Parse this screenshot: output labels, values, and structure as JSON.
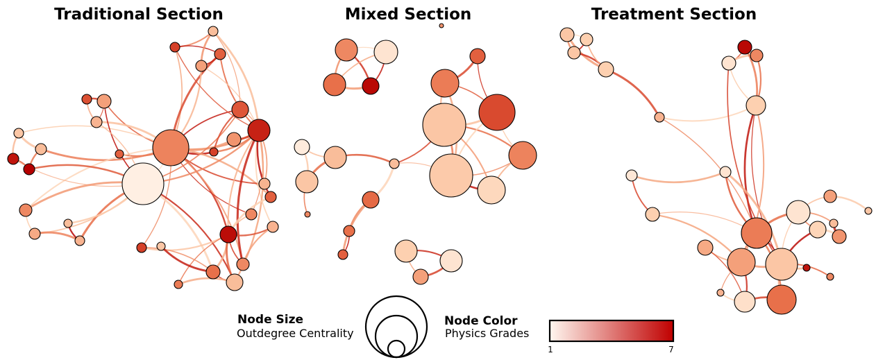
{
  "titles": {
    "traditional": "Traditional Section",
    "mixed": "Mixed Section",
    "treatment": "Treatment Section"
  },
  "legend": {
    "size_heading": "Node Size",
    "size_measure": "Outdegree Centrality",
    "color_heading": "Node Color",
    "color_measure": "Physics Grades",
    "scale_min": "1",
    "scale_max": "7",
    "scale_colors": [
      "#fff7f0",
      "#c00000"
    ]
  }
}
